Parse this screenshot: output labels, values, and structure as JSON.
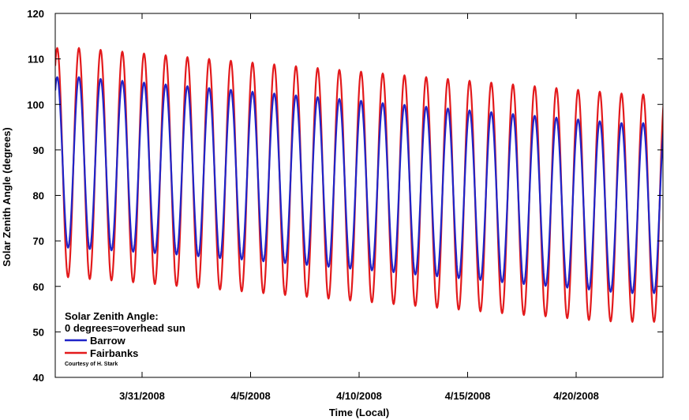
{
  "chart_data": {
    "type": "line",
    "title": "",
    "xlabel": "Time (Local)",
    "ylabel": "Solar Zenith Angle (degrees)",
    "ylim": [
      40,
      120
    ],
    "yticks": [
      40,
      50,
      60,
      70,
      80,
      90,
      100,
      110,
      120
    ],
    "xlim": [
      "2008-03-27",
      "2008-04-24"
    ],
    "xtick_labels": [
      {
        "date": "2008-03-31",
        "label": "3/31/2008"
      },
      {
        "date": "2008-04-05",
        "label": "4/5/2008"
      },
      {
        "date": "2008-04-10",
        "label": "4/10/2008"
      },
      {
        "date": "2008-04-15",
        "label": "4/15/2008"
      },
      {
        "date": "2008-04-20",
        "label": "4/20/2008"
      }
    ],
    "grid": false,
    "legend": {
      "placement": "bottom-left",
      "title_lines": [
        "Solar Zenith Angle:",
        "0 degrees=overhead sun"
      ],
      "credit": "Courtesy of H. Stark"
    },
    "series": [
      {
        "name": "Barrow",
        "color": "#1f24c8",
        "shape": "daily sinusoid",
        "first_day": "2008-03-28",
        "daily_max": [
          106,
          105.6,
          105.2,
          104.8,
          104.4,
          104,
          103.6,
          103.2,
          102.8,
          102.4,
          102,
          101.6,
          101.2,
          100.8,
          100.3,
          99.9,
          99.5,
          99.1,
          98.7,
          98.3,
          97.9,
          97.5,
          97.1,
          96.7,
          96.3,
          95.9,
          95.9
        ],
        "daily_min": [
          68.5,
          68.2,
          67.9,
          67.6,
          67.3,
          67,
          66.6,
          66.2,
          65.9,
          65.5,
          65.1,
          64.7,
          64.3,
          63.9,
          63.5,
          63.1,
          62.6,
          62.2,
          61.8,
          61.4,
          60.9,
          60.5,
          60.1,
          59.7,
          59.3,
          58.8,
          58.5
        ]
      },
      {
        "name": "Fairbanks",
        "color": "#e31a1c",
        "shape": "daily sinusoid",
        "first_day": "2008-03-28",
        "daily_max": [
          112.4,
          112,
          111.6,
          111.2,
          110.8,
          110.4,
          110,
          109.6,
          109.2,
          108.8,
          108.4,
          108,
          107.6,
          107.2,
          106.8,
          106.4,
          106,
          105.6,
          105.2,
          104.8,
          104.4,
          104,
          103.6,
          103.2,
          102.8,
          102.4,
          102.2
        ],
        "daily_min": [
          62,
          61.6,
          61.3,
          60.9,
          60.5,
          60.1,
          59.7,
          59.3,
          58.9,
          58.5,
          58.1,
          57.7,
          57.3,
          56.9,
          56.5,
          56.1,
          55.7,
          55.3,
          54.9,
          54.5,
          54.1,
          53.7,
          53.4,
          53,
          52.6,
          52.3,
          52.2
        ]
      }
    ]
  }
}
